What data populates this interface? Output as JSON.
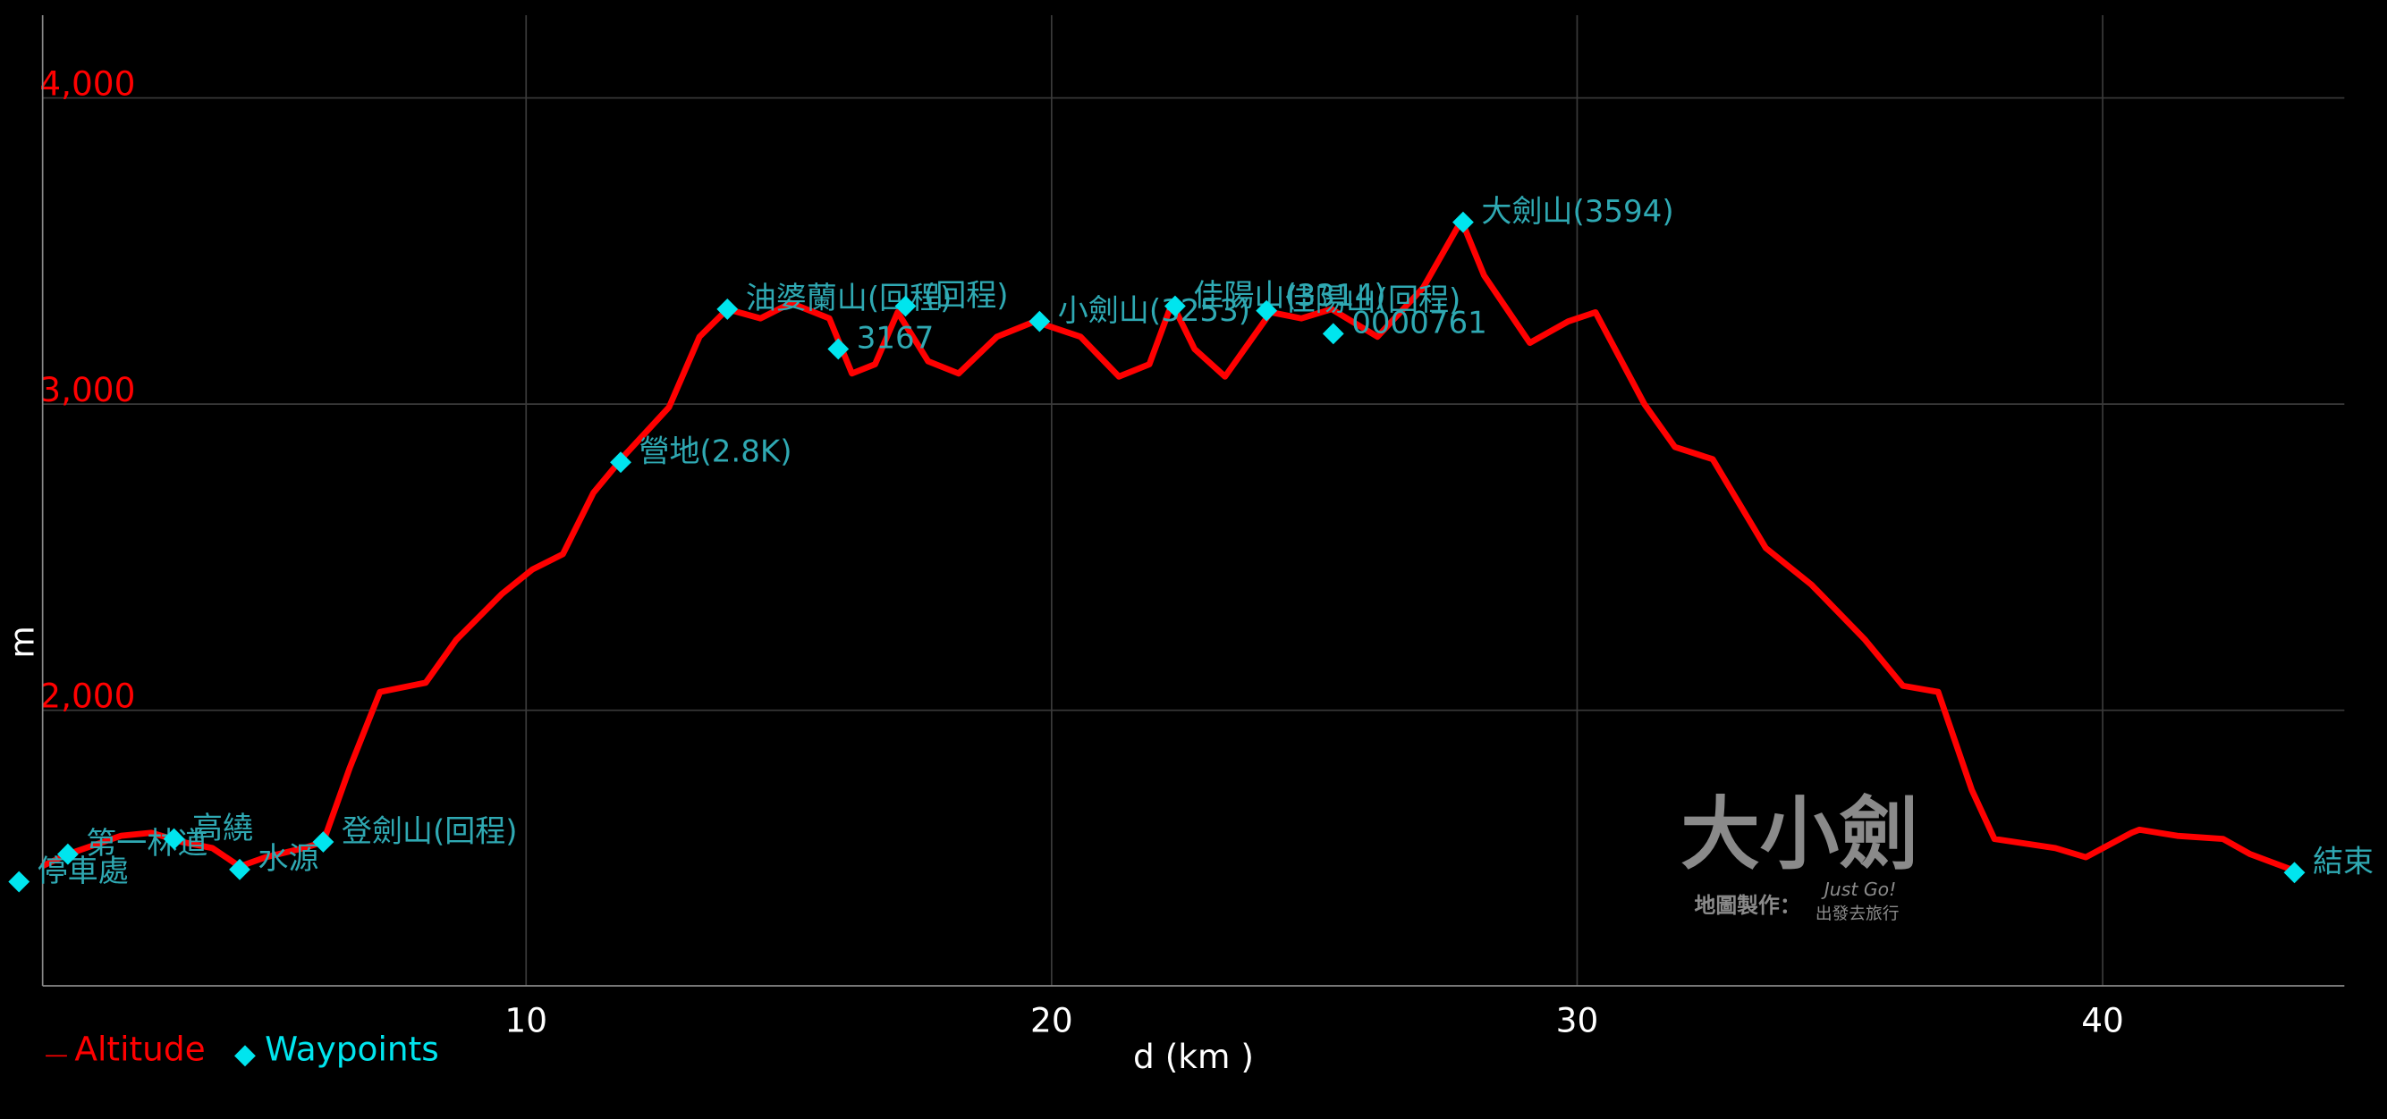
{
  "chart_data": {
    "type": "line",
    "xlabel": "d (km )",
    "ylabel": "m",
    "xlim": [
      0.8,
      44.6
    ],
    "ylim": [
      1100,
      4270
    ],
    "xticks": [
      10,
      20,
      30,
      40
    ],
    "yticks": [
      {
        "value": 2000,
        "label": "2,000"
      },
      {
        "value": 3000,
        "label": "3,000"
      },
      {
        "value": 4000,
        "label": "4,000"
      }
    ],
    "grid": true,
    "legend": "bottom-left",
    "series": [
      {
        "name": "Altitude",
        "color": "#ff0000",
        "x": [
          0.78,
          1.28,
          2.29,
          2.87,
          3.45,
          4.03,
          4.55,
          5.04,
          5.77,
          6.14,
          6.64,
          7.22,
          7.8,
          8.09,
          8.67,
          9.54,
          10.12,
          10.7,
          11.28,
          11.86,
          12.72,
          13.3,
          13.83,
          14.46,
          15.04,
          15.77,
          16.2,
          16.64,
          17.07,
          17.65,
          18.23,
          18.96,
          19.68,
          20.55,
          21.28,
          21.86,
          22.29,
          22.72,
          23.3,
          23.88,
          24.17,
          24.75,
          25.33,
          26.2,
          27.07,
          27.8,
          28.23,
          29.1,
          29.83,
          30.35,
          31.28,
          31.86,
          32.58,
          33.59,
          34.46,
          35.48,
          36.2,
          36.87,
          37.51,
          37.94,
          39.1,
          39.68,
          40.55,
          40.7,
          41.42,
          42.29,
          42.81,
          43.59
        ],
        "values": [
          1490,
          1530,
          1590,
          1600,
          1570,
          1550,
          1490,
          1520,
          1550,
          1570,
          1810,
          2060,
          2080,
          2090,
          2230,
          2380,
          2460,
          2510,
          2710,
          2830,
          2990,
          3220,
          3310,
          3280,
          3330,
          3280,
          3100,
          3130,
          3300,
          3140,
          3100,
          3220,
          3270,
          3220,
          3090,
          3130,
          3330,
          3180,
          3090,
          3230,
          3300,
          3280,
          3310,
          3220,
          3380,
          3600,
          3420,
          3200,
          3270,
          3300,
          3000,
          2860,
          2820,
          2530,
          2410,
          2230,
          2080,
          2060,
          1740,
          1580,
          1550,
          1520,
          1600,
          1610,
          1590,
          1580,
          1530,
          1480
        ]
      },
      {
        "name": "Waypoints",
        "color": "#00e5ee",
        "x": [
          0.35,
          1.28,
          3.3,
          4.55,
          6.14,
          11.8,
          13.83,
          15.94,
          17.22,
          19.77,
          22.35,
          24.09,
          25.36,
          27.83,
          43.65
        ],
        "values": [
          1440,
          1530,
          1580,
          1480,
          1570,
          2810,
          3310,
          3180,
          3320,
          3270,
          3320,
          3305,
          3230,
          3594,
          1470
        ],
        "labels": [
          "停車處",
          "第一林道",
          "高繞",
          "水源",
          "登劍山(回程)",
          "營地(2.8K)",
          "油婆蘭山(回程)",
          "3167",
          "(回程)",
          "小劍山(3253)",
          "佳陽山(3314)",
          "佳陽山(回程)",
          "0000761",
          "大劍山(3594)",
          "結束"
        ]
      }
    ],
    "watermark": {
      "title": "大小劍",
      "credit": "地圖製作：",
      "signature": "Just Go!",
      "brand": "出發去旅行"
    }
  }
}
